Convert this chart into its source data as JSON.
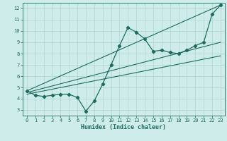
{
  "xlabel": "Humidex (Indice chaleur)",
  "bg_color": "#cdecea",
  "grid_color": "#b2d8d5",
  "line_color": "#1e6b5e",
  "xlim": [
    -0.5,
    23.5
  ],
  "ylim": [
    2.5,
    12.5
  ],
  "xticks": [
    0,
    1,
    2,
    3,
    4,
    5,
    6,
    7,
    8,
    9,
    10,
    11,
    12,
    13,
    14,
    15,
    16,
    17,
    18,
    19,
    20,
    21,
    22,
    23
  ],
  "yticks": [
    3,
    4,
    5,
    6,
    7,
    8,
    9,
    10,
    11,
    12
  ],
  "scatter_x": [
    0,
    1,
    2,
    3,
    4,
    5,
    6,
    7,
    8,
    9,
    10,
    11,
    12,
    13,
    14,
    15,
    16,
    17,
    18,
    19,
    20,
    21,
    22,
    23
  ],
  "scatter_y": [
    4.7,
    4.3,
    4.2,
    4.3,
    4.4,
    4.4,
    4.1,
    2.9,
    3.8,
    5.3,
    7.0,
    8.7,
    10.3,
    9.9,
    9.3,
    8.2,
    8.3,
    8.1,
    8.0,
    8.3,
    8.7,
    9.0,
    11.5,
    12.3
  ],
  "line1_x": [
    0,
    23
  ],
  "line1_y": [
    4.7,
    12.3
  ],
  "line2_x": [
    0,
    23
  ],
  "line2_y": [
    4.55,
    9.0
  ],
  "line3_x": [
    0,
    23
  ],
  "line3_y": [
    4.4,
    7.8
  ]
}
